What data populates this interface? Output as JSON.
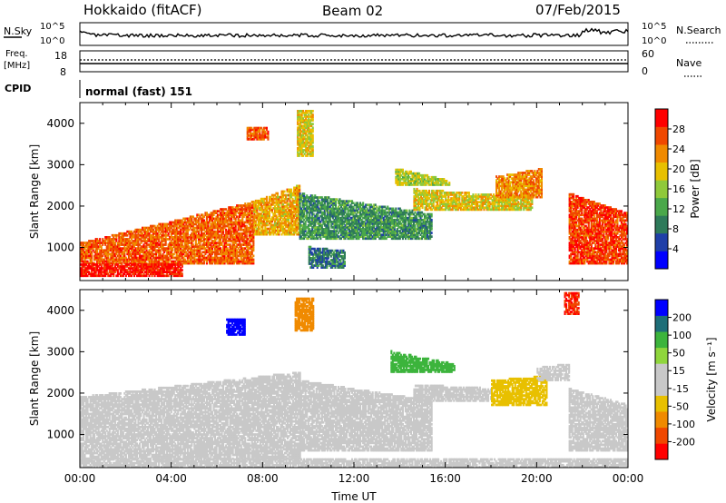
{
  "header": {
    "site": "Hokkaido (fitACF)",
    "beam": "Beam 02",
    "date": "07/Feb/2015"
  },
  "noise_panel": {
    "left_label": "N.Sky",
    "right_label": "N.Search",
    "left_ticks": [
      "10^5",
      "10^0"
    ],
    "right_ticks": [
      "10^5",
      "10^0"
    ]
  },
  "freq_panel": {
    "left_label_line1": "Freq.",
    "left_label_line2": "[MHz]",
    "left_ticks": [
      "18",
      "8"
    ],
    "right_label": "Nave",
    "right_ticks": [
      "60",
      "0"
    ]
  },
  "cpid_panel": {
    "label": "CPID",
    "mode": "normal (fast) 151"
  },
  "colors": {
    "power_scale": [
      "#0000ff",
      "#1f3fa8",
      "#2e7a5a",
      "#4aa84a",
      "#8fc93a",
      "#e8c000",
      "#f08a00",
      "#f04800",
      "#ff0000"
    ],
    "velocity_scale": [
      "#ff0000",
      "#f04800",
      "#f08a00",
      "#e8c000",
      "#c8c8c8",
      "#c8c8c8",
      "#8fd63c",
      "#3cb43c",
      "#1e6e78",
      "#0000ff"
    ],
    "frame": "#000000",
    "ground_scatter": "#c8c8c8"
  },
  "chart_data": [
    {
      "type": "heatmap",
      "title": "",
      "xlabel": "",
      "ylabel": "Slant Range [km]",
      "xlim": [
        "00:00",
        "24:00"
      ],
      "ylim": [
        200,
        4500
      ],
      "y_ticks": [
        1000,
        2000,
        3000,
        4000
      ],
      "colorbar": {
        "label": "Power [dB]",
        "ticks": [
          "4",
          "8",
          "12",
          "16",
          "20",
          "24",
          "28"
        ],
        "range": [
          0,
          30
        ]
      },
      "regions": [
        {
          "t0": 0.0,
          "t1": 7.6,
          "r0": 600,
          "r1_start": 1100,
          "r1_end": 2100,
          "value": 24
        },
        {
          "t0": 0.0,
          "t1": 4.5,
          "r0": 300,
          "r1_start": 600,
          "r1_end": 600,
          "value": 28
        },
        {
          "t0": 7.6,
          "t1": 9.6,
          "r0": 1300,
          "r1_start": 2100,
          "r1_end": 2500,
          "value": 20
        },
        {
          "t0": 9.6,
          "t1": 15.4,
          "r0": 1200,
          "r1_start": 2300,
          "r1_end": 1800,
          "value": 10
        },
        {
          "t0": 10.0,
          "t1": 11.6,
          "r0": 500,
          "r1_start": 1000,
          "r1_end": 900,
          "value": 8
        },
        {
          "t0": 13.8,
          "t1": 16.2,
          "r0": 2500,
          "r1_start": 2900,
          "r1_end": 2600,
          "value": 16
        },
        {
          "t0": 14.6,
          "t1": 19.8,
          "r0": 1900,
          "r1_start": 2400,
          "r1_end": 2200,
          "value": 18
        },
        {
          "t0": 18.2,
          "t1": 20.2,
          "r0": 2200,
          "r1_start": 2700,
          "r1_end": 2900,
          "value": 22
        },
        {
          "t0": 21.4,
          "t1": 24.0,
          "r0": 600,
          "r1_start": 2300,
          "r1_end": 1800,
          "value": 26
        },
        {
          "t0": 7.3,
          "t1": 8.2,
          "r0": 3600,
          "r1_start": 3900,
          "r1_end": 3900,
          "value": 24
        },
        {
          "t0": 9.5,
          "t1": 10.2,
          "r0": 3200,
          "r1_start": 4300,
          "r1_end": 4300,
          "value": 18
        }
      ]
    },
    {
      "type": "heatmap",
      "title": "",
      "xlabel": "Time UT",
      "ylabel": "Slant Range [km]",
      "xlim": [
        "00:00",
        "24:00"
      ],
      "ylim": [
        200,
        4500
      ],
      "x_ticks": [
        "00:00",
        "04:00",
        "08:00",
        "12:00",
        "16:00",
        "20:00",
        "00:00"
      ],
      "y_ticks": [
        1000,
        2000,
        3000,
        4000
      ],
      "colorbar": {
        "label": "Velocity [m s⁻¹]",
        "ticks": [
          "200",
          "100",
          "50",
          "15",
          "-15",
          "-50",
          "-100",
          "-200"
        ],
        "range": [
          -250,
          250
        ]
      },
      "regions": [
        {
          "t0": 0.0,
          "t1": 9.6,
          "r0": 400,
          "r1_start": 1900,
          "r1_end": 2500,
          "value": 0
        },
        {
          "t0": 9.6,
          "t1": 15.4,
          "r0": 600,
          "r1_start": 2300,
          "r1_end": 1800,
          "value": 0
        },
        {
          "t0": 13.6,
          "t1": 16.4,
          "r0": 2500,
          "r1_start": 3000,
          "r1_end": 2700,
          "value": 120
        },
        {
          "t0": 14.6,
          "t1": 18.0,
          "r0": 1800,
          "r1_start": 2200,
          "r1_end": 2100,
          "value": 40
        },
        {
          "t0": 18.0,
          "t1": 20.4,
          "r0": 1700,
          "r1_start": 2300,
          "r1_end": 2400,
          "value": -60
        },
        {
          "t0": 20.0,
          "t1": 21.4,
          "r0": 2300,
          "r1_start": 2600,
          "r1_end": 2700,
          "value": 40
        },
        {
          "t0": 21.4,
          "t1": 24.0,
          "r0": 600,
          "r1_start": 2100,
          "r1_end": 1700,
          "value": 0
        },
        {
          "t0": 6.4,
          "t1": 7.2,
          "r0": 3400,
          "r1_start": 3800,
          "r1_end": 3800,
          "value": 220
        },
        {
          "t0": 9.4,
          "t1": 10.2,
          "r0": 3500,
          "r1_start": 4300,
          "r1_end": 4300,
          "value": -120
        },
        {
          "t0": 21.2,
          "t1": 21.8,
          "r0": 3900,
          "r1_start": 4400,
          "r1_end": 4400,
          "value": -200
        },
        {
          "t0": 0.0,
          "t1": 24.0,
          "r0": 200,
          "r1_start": 400,
          "r1_end": 400,
          "value": -40
        }
      ]
    }
  ]
}
